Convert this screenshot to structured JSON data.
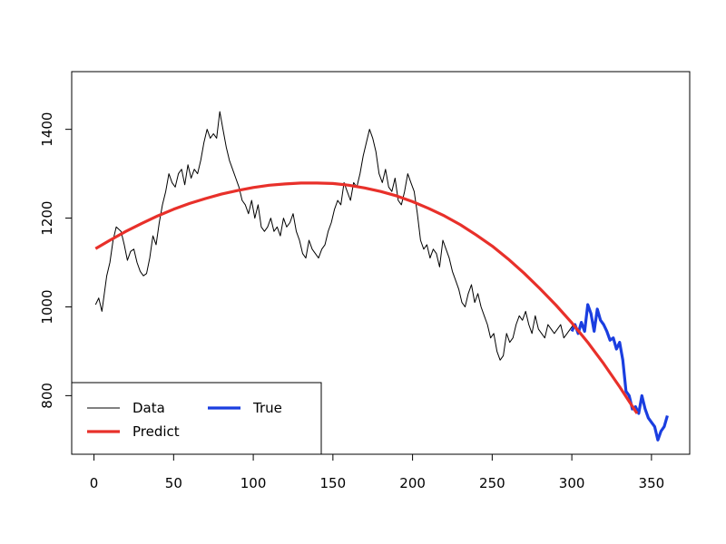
{
  "chart_data": {
    "type": "line",
    "title": "",
    "xlabel": "",
    "ylabel": "",
    "xlim": [
      -14,
      374
    ],
    "ylim": [
      668,
      1530
    ],
    "x_ticks": [
      0,
      50,
      100,
      150,
      200,
      250,
      300,
      350
    ],
    "y_ticks": [
      800,
      1000,
      1200,
      1400
    ],
    "grid": false,
    "legend_position": "bottom-left",
    "series": [
      {
        "name": "Data",
        "color": "#000000",
        "stroke": "thin",
        "x": [
          1,
          3,
          5,
          8,
          10,
          12,
          14,
          17,
          19,
          21,
          23,
          25,
          27,
          29,
          31,
          33,
          35,
          37,
          39,
          41,
          43,
          45,
          47,
          49,
          51,
          53,
          55,
          57,
          59,
          61,
          63,
          65,
          67,
          69,
          71,
          73,
          75,
          77,
          79,
          81,
          83,
          85,
          87,
          89,
          91,
          93,
          95,
          97,
          99,
          101,
          103,
          105,
          107,
          109,
          111,
          113,
          115,
          117,
          119,
          121,
          123,
          125,
          127,
          129,
          131,
          133,
          135,
          137,
          139,
          141,
          143,
          145,
          147,
          149,
          151,
          153,
          155,
          157,
          159,
          161,
          163,
          165,
          167,
          169,
          171,
          173,
          175,
          177,
          179,
          181,
          183,
          185,
          187,
          189,
          191,
          193,
          195,
          197,
          199,
          201,
          203,
          205,
          207,
          209,
          211,
          213,
          215,
          217,
          219,
          221,
          223,
          225,
          227,
          229,
          231,
          233,
          235,
          237,
          239,
          241,
          243,
          245,
          247,
          249,
          251,
          253,
          255,
          257,
          259,
          261,
          263,
          265,
          267,
          269,
          271,
          273,
          275,
          277,
          279,
          281,
          283,
          285,
          287,
          289,
          291,
          293,
          295,
          297,
          299,
          301
        ],
        "y": [
          1005,
          1020,
          990,
          1070,
          1100,
          1150,
          1180,
          1170,
          1140,
          1105,
          1125,
          1130,
          1100,
          1080,
          1070,
          1075,
          1110,
          1160,
          1140,
          1190,
          1230,
          1260,
          1300,
          1280,
          1270,
          1300,
          1310,
          1275,
          1320,
          1290,
          1310,
          1300,
          1330,
          1370,
          1400,
          1380,
          1390,
          1380,
          1440,
          1400,
          1360,
          1330,
          1310,
          1290,
          1270,
          1240,
          1230,
          1210,
          1240,
          1200,
          1230,
          1180,
          1170,
          1180,
          1200,
          1170,
          1180,
          1160,
          1200,
          1180,
          1190,
          1210,
          1170,
          1150,
          1120,
          1110,
          1150,
          1130,
          1120,
          1110,
          1130,
          1140,
          1170,
          1190,
          1220,
          1240,
          1230,
          1280,
          1260,
          1240,
          1280,
          1270,
          1300,
          1340,
          1370,
          1400,
          1380,
          1350,
          1300,
          1280,
          1310,
          1270,
          1260,
          1290,
          1240,
          1230,
          1260,
          1300,
          1280,
          1260,
          1210,
          1150,
          1130,
          1140,
          1110,
          1130,
          1120,
          1090,
          1150,
          1130,
          1110,
          1080,
          1060,
          1040,
          1010,
          1000,
          1030,
          1050,
          1010,
          1030,
          1000,
          980,
          960,
          930,
          940,
          900,
          880,
          890,
          940,
          920,
          930,
          960,
          980,
          970,
          990,
          960,
          940,
          980,
          950,
          940,
          930,
          960,
          950,
          940,
          950,
          960,
          930,
          940,
          950,
          960
        ],
        "note_on_x_sampling": "approximate"
      },
      {
        "name": "True",
        "color": "#1a3ee0",
        "stroke": "thick",
        "x": [
          300,
          302,
          304,
          306,
          308,
          310,
          312,
          314,
          316,
          318,
          320,
          322,
          324,
          326,
          328,
          330,
          332,
          334,
          336,
          338,
          340,
          342,
          344,
          346,
          348,
          350,
          352,
          354,
          356,
          358,
          360
        ],
        "y": [
          945,
          960,
          940,
          965,
          945,
          1005,
          985,
          945,
          995,
          970,
          960,
          945,
          925,
          930,
          905,
          920,
          880,
          810,
          800,
          770,
          775,
          760,
          800,
          770,
          750,
          740,
          730,
          700,
          720,
          730,
          755
        ]
      },
      {
        "name": "Predict",
        "color": "#e8302a",
        "stroke": "thick",
        "x": [
          1,
          10,
          20,
          30,
          40,
          50,
          60,
          70,
          80,
          90,
          100,
          110,
          120,
          130,
          140,
          150,
          160,
          170,
          180,
          190,
          200,
          210,
          220,
          230,
          240,
          250,
          260,
          270,
          280,
          290,
          300,
          310,
          320,
          330,
          340,
          341
        ],
        "y": [
          1131,
          1150,
          1170,
          1188,
          1205,
          1220,
          1233,
          1244,
          1254,
          1262,
          1269,
          1274,
          1277,
          1279,
          1279,
          1278,
          1274,
          1268,
          1260,
          1250,
          1237,
          1222,
          1205,
          1185,
          1162,
          1137,
          1108,
          1076,
          1041,
          1004,
          964,
          920,
          872,
          820,
          765,
          760
        ]
      }
    ]
  }
}
